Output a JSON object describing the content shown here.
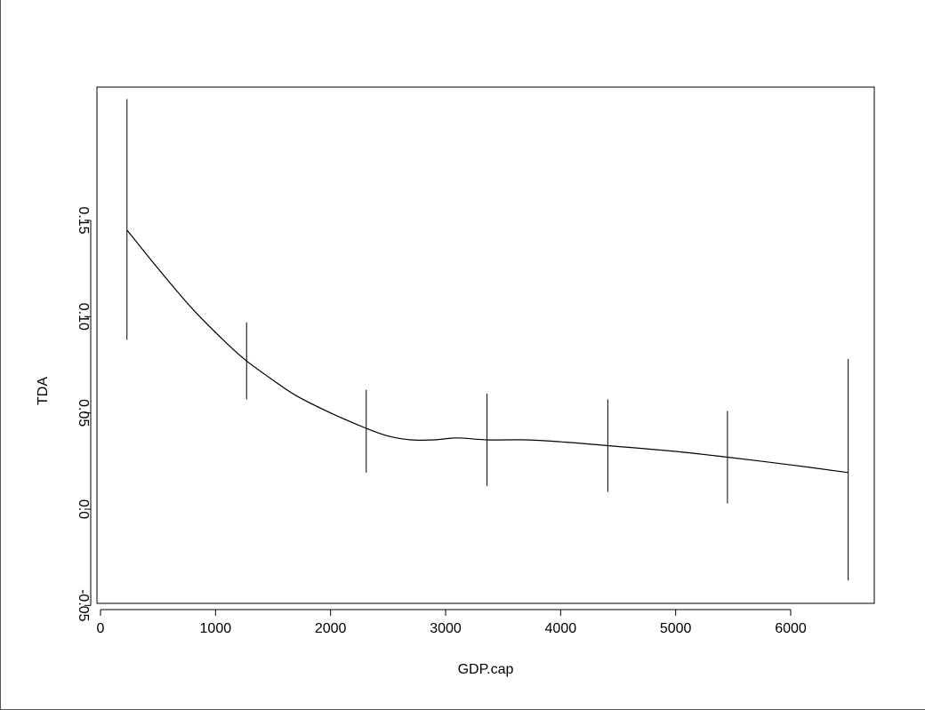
{
  "chart_data": {
    "type": "line",
    "title": "",
    "xlabel": "GDP.cap",
    "ylabel": "TDA",
    "xlim": [
      -50,
      6800
    ],
    "ylim": [
      -0.05,
      0.2
    ],
    "xticks": [
      0,
      1000,
      2000,
      3000,
      4000,
      5000,
      6000
    ],
    "xtick_labels": [
      "0",
      "1000",
      "2000",
      "3000",
      "4000",
      "5000",
      "6000"
    ],
    "yticks": [
      -0.05,
      0.0,
      0.05,
      0.1,
      0.15
    ],
    "ytick_labels": [
      "-0.05",
      "0.0",
      "0.05",
      "0.10",
      "0.15"
    ],
    "grid": false,
    "series": [
      {
        "x": [
          230,
          500,
          800,
          1100,
          1270,
          1500,
          1700,
          2000,
          2310,
          2500,
          2700,
          2900,
          3100,
          3360,
          3700,
          4000,
          4410,
          5000,
          5450,
          6000,
          6500
        ],
        "y": [
          0.145,
          0.125,
          0.104,
          0.086,
          0.077,
          0.067,
          0.059,
          0.05,
          0.042,
          0.038,
          0.036,
          0.036,
          0.037,
          0.036,
          0.036,
          0.035,
          0.033,
          0.03,
          0.027,
          0.023,
          0.019
        ]
      }
    ],
    "error_bars": [
      {
        "x": 230,
        "low": 0.088,
        "high": 0.213
      },
      {
        "x": 1270,
        "low": 0.057,
        "high": 0.097
      },
      {
        "x": 2310,
        "low": 0.019,
        "high": 0.062
      },
      {
        "x": 3360,
        "low": 0.012,
        "high": 0.06
      },
      {
        "x": 4410,
        "low": 0.009,
        "high": 0.057
      },
      {
        "x": 5450,
        "low": 0.003,
        "high": 0.051
      },
      {
        "x": 6500,
        "low": -0.037,
        "high": 0.078
      }
    ]
  }
}
